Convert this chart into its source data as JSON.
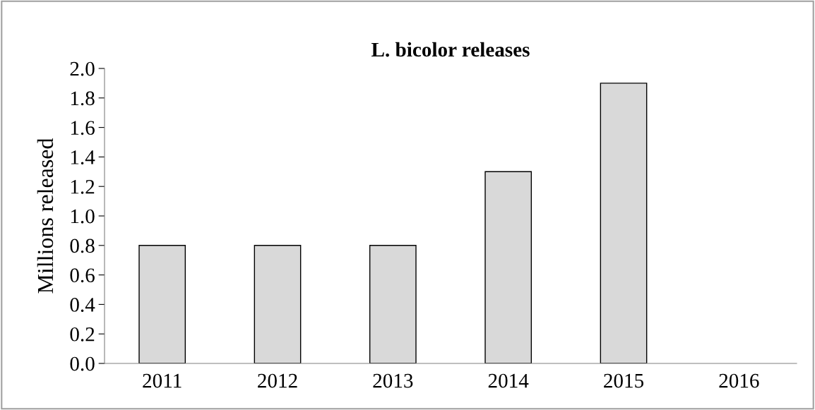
{
  "chart_data": {
    "type": "bar",
    "title": "L. bicolor releases",
    "ylabel": "Millions released",
    "categories": [
      "2011",
      "2012",
      "2013",
      "2014",
      "2015",
      "2016"
    ],
    "values": [
      0.8,
      0.8,
      0.8,
      1.3,
      1.9,
      0
    ],
    "color": "#d9d9d9",
    "ylim": [
      0,
      2.0
    ],
    "yticks": [
      {
        "value": 0,
        "label": "0.0"
      },
      {
        "value": 0.2,
        "label": "0.2"
      },
      {
        "value": 0.4,
        "label": "0.4"
      },
      {
        "value": 0.6,
        "label": "0.6"
      },
      {
        "value": 0.8,
        "label": "0.8"
      },
      {
        "value": 1.0,
        "label": "1.0"
      },
      {
        "value": 1.2,
        "label": "1.2"
      },
      {
        "value": 1.4,
        "label": "1.4"
      },
      {
        "value": 1.6,
        "label": "1.6"
      },
      {
        "value": 1.8,
        "label": "1.8"
      },
      {
        "value": 2.0,
        "label": "2.0"
      }
    ],
    "grid": false,
    "legend": false
  }
}
